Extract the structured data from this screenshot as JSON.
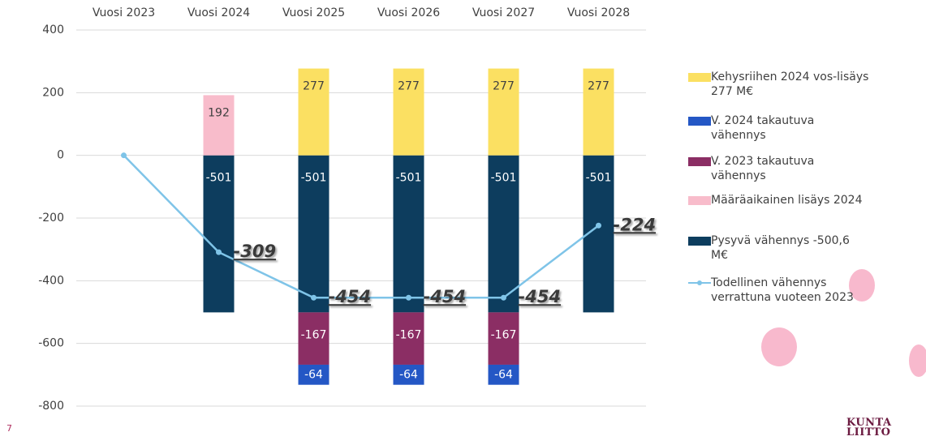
{
  "chart_data": {
    "type": "bar",
    "categories": [
      "Vuosi 2023",
      "Vuosi 2024",
      "Vuosi 2025",
      "Vuosi 2026",
      "Vuosi 2027",
      "Vuosi 2028"
    ],
    "series": [
      {
        "name": "Kehysriihen 2024 vos-lisäys 277 M€",
        "color": "#fbe062",
        "values": [
          null,
          null,
          277,
          277,
          277,
          277
        ]
      },
      {
        "name": "V. 2024 takautuva vähennys",
        "color": "#2457c5",
        "values": [
          null,
          null,
          -64,
          -64,
          -64,
          null
        ]
      },
      {
        "name": "V. 2023 takautuva vähennys",
        "color": "#8b2e64",
        "values": [
          null,
          null,
          -167,
          -167,
          -167,
          null
        ]
      },
      {
        "name": "Määräaikainen lisäys 2024",
        "color": "#f8bccb",
        "values": [
          null,
          192,
          null,
          null,
          null,
          null
        ]
      },
      {
        "name": "Pysyvä vähennys -500,6 M€",
        "color": "#0d3d5e",
        "values": [
          null,
          -501,
          -501,
          -501,
          -501,
          -501
        ]
      },
      {
        "name": "Todellinen vähennys verrattuna vuoteen 2023",
        "color": "#7fc4e8",
        "type": "line",
        "values": [
          0,
          -309,
          -454,
          -454,
          -454,
          -224
        ]
      }
    ],
    "ylim": [
      -800,
      400
    ],
    "yticks": [
      -800,
      -600,
      -400,
      -200,
      0,
      200,
      400
    ],
    "grid": true
  },
  "page_number": "7",
  "logo": [
    "KUNTA",
    "LIITTO"
  ]
}
